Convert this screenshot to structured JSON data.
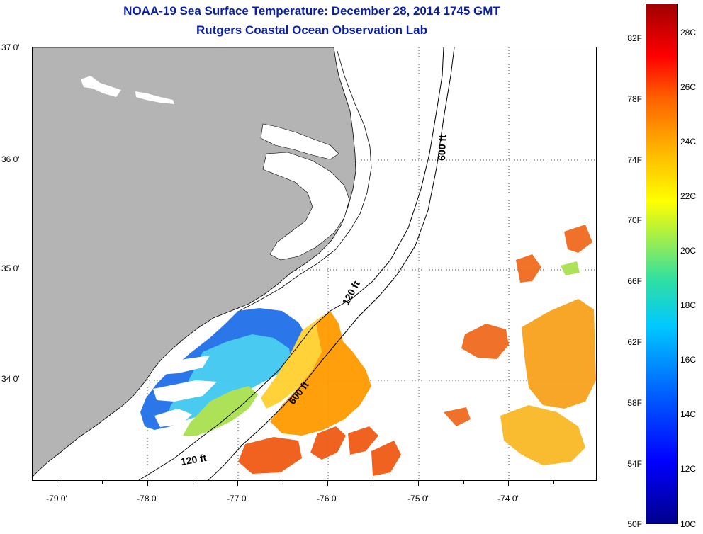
{
  "header": {
    "title": "NOAA-19 Sea Surface Temperature:  December 28, 2014 1745 GMT",
    "subtitle": "Rutgers Coastal Ocean Observation Lab"
  },
  "axes": {
    "lat_labels": [
      "37 0'",
      "36 0'",
      "35 0'",
      "34 0'"
    ],
    "lon_labels": [
      "-79 0'",
      "-78 0'",
      "-77 0'",
      "-76 0'",
      "-75 0'",
      "-74 0'"
    ]
  },
  "contours": {
    "label_600_north": "600 ft",
    "label_120_mid": "120 ft",
    "label_600_south": "600 ft",
    "label_120_south": "120 ft"
  },
  "colorbar": {
    "fahrenheit": [
      "82F",
      "78F",
      "74F",
      "70F",
      "66F",
      "62F",
      "58F",
      "54F",
      "50F"
    ],
    "celsius": [
      "28C",
      "26C",
      "24C",
      "22C",
      "20C",
      "18C",
      "16C",
      "14C",
      "12C",
      "10C"
    ]
  },
  "colors": {
    "land": "#b4b4b4",
    "cold": "#1e64e6",
    "cool": "#3cc8f0",
    "mild": "#b4e650",
    "warm": "#ff9600",
    "hot": "#f04614",
    "yellow": "#ffd228"
  }
}
